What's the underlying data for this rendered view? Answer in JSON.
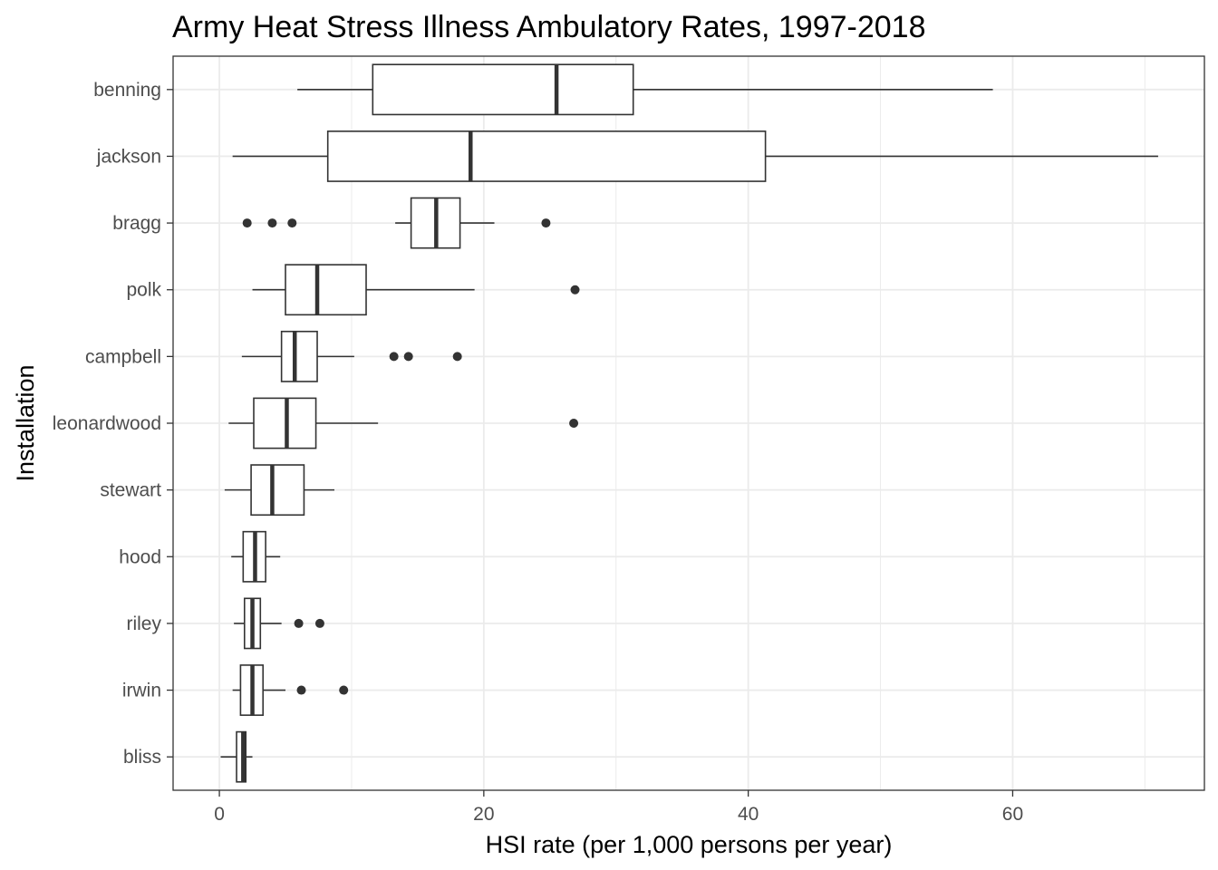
{
  "chart_data": {
    "type": "boxplot",
    "orientation": "horizontal",
    "title": "Army Heat Stress Illness Ambulatory Rates, 1997-2018",
    "xlabel": "HSI rate (per 1,000 persons per year)",
    "ylabel": "Installation",
    "xlim": [
      -3.5,
      74.5
    ],
    "x_ticks": [
      0,
      20,
      40,
      60
    ],
    "x_tick_labels": [
      "0",
      "20",
      "40",
      "60"
    ],
    "grid": true,
    "theme": "bw",
    "colors": {
      "box_line": "#333333",
      "outlier": "#333333",
      "grid": "#ebebeb",
      "panel_border": "#333333",
      "tick_label": "#4d4d4d"
    },
    "categories": [
      "benning",
      "jackson",
      "bragg",
      "polk",
      "campbell",
      "leonardwood",
      "stewart",
      "hood",
      "riley",
      "irwin",
      "bliss"
    ],
    "boxes": [
      {
        "name": "benning",
        "whisker_low": 5.9,
        "q1": 11.6,
        "median": 25.5,
        "q3": 31.3,
        "whisker_high": 58.5,
        "outliers": []
      },
      {
        "name": "jackson",
        "whisker_low": 1.0,
        "q1": 8.2,
        "median": 19.0,
        "q3": 41.3,
        "whisker_high": 71.0,
        "outliers": []
      },
      {
        "name": "bragg",
        "whisker_low": 13.3,
        "q1": 14.5,
        "median": 16.4,
        "q3": 18.2,
        "whisker_high": 20.8,
        "outliers": [
          2.1,
          4.0,
          5.5,
          24.7
        ]
      },
      {
        "name": "polk",
        "whisker_low": 2.5,
        "q1": 5.0,
        "median": 7.4,
        "q3": 11.1,
        "whisker_high": 19.3,
        "outliers": [
          26.9
        ]
      },
      {
        "name": "campbell",
        "whisker_low": 1.7,
        "q1": 4.7,
        "median": 5.7,
        "q3": 7.4,
        "whisker_high": 10.2,
        "outliers": [
          13.2,
          14.3,
          18.0
        ]
      },
      {
        "name": "leonardwood",
        "whisker_low": 0.7,
        "q1": 2.6,
        "median": 5.1,
        "q3": 7.3,
        "whisker_high": 12.0,
        "outliers": [
          26.8
        ]
      },
      {
        "name": "stewart",
        "whisker_low": 0.4,
        "q1": 2.4,
        "median": 4.0,
        "q3": 6.4,
        "whisker_high": 8.7,
        "outliers": []
      },
      {
        "name": "hood",
        "whisker_low": 0.9,
        "q1": 1.8,
        "median": 2.7,
        "q3": 3.5,
        "whisker_high": 4.6,
        "outliers": []
      },
      {
        "name": "riley",
        "whisker_low": 1.1,
        "q1": 1.9,
        "median": 2.5,
        "q3": 3.1,
        "whisker_high": 4.7,
        "outliers": [
          6.0,
          7.6
        ]
      },
      {
        "name": "irwin",
        "whisker_low": 1.0,
        "q1": 1.6,
        "median": 2.5,
        "q3": 3.3,
        "whisker_high": 5.0,
        "outliers": [
          6.2,
          9.4
        ]
      },
      {
        "name": "bliss",
        "whisker_low": 0.1,
        "q1": 1.3,
        "median": 1.8,
        "q3": 2.0,
        "whisker_high": 2.5,
        "outliers": []
      }
    ]
  }
}
